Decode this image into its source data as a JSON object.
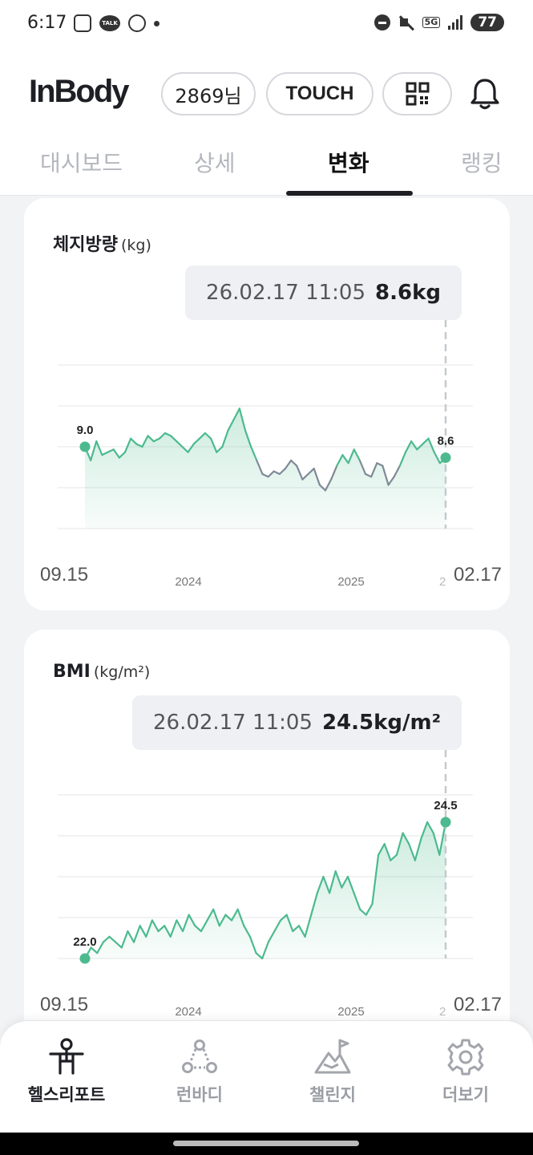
{
  "status_bar": {
    "time": "6:17",
    "talk_label": "TALK",
    "network": "5G",
    "battery": "77"
  },
  "header": {
    "logo": "InBody",
    "user_pill": "2869님",
    "touch_pill": "TOUCH",
    "qr_icon": "qr-code-icon",
    "bell_icon": "bell-icon"
  },
  "tabs": [
    {
      "label": "대시보드",
      "active": false
    },
    {
      "label": "상세",
      "active": false
    },
    {
      "label": "변화",
      "active": true
    },
    {
      "label": "랭킹",
      "active": false
    }
  ],
  "colors": {
    "accent": "#4cba8e",
    "below_line": "#7f8a96",
    "marker": "#c6c9ce"
  },
  "cards": [
    {
      "title": "체지방량",
      "unit": "(kg)",
      "tooltip_time": "26.02.17 11:05",
      "tooltip_value": "8.6kg",
      "start_label": "9.0",
      "end_label": "8.6",
      "x_start": "09.15",
      "x_end": "02.17",
      "year_labels": [
        "2024",
        "2025"
      ],
      "year_cut": "2",
      "chart_data": {
        "type": "line",
        "title": "체지방량",
        "ylabel": "(kg)",
        "x_start": "09.15",
        "x_end": "02.17",
        "ylim": [
          6.0,
          12.0
        ],
        "values": [
          9.0,
          8.5,
          9.2,
          8.7,
          8.8,
          8.9,
          8.6,
          8.8,
          9.3,
          9.1,
          9.0,
          9.4,
          9.2,
          9.3,
          9.5,
          9.4,
          9.2,
          9.0,
          8.8,
          9.1,
          9.3,
          9.5,
          9.3,
          8.8,
          9.0,
          9.6,
          10.0,
          10.4,
          9.6,
          9.0,
          8.5,
          8.0,
          7.9,
          8.1,
          8.0,
          8.2,
          8.5,
          8.3,
          7.8,
          8.0,
          8.2,
          7.6,
          7.4,
          7.8,
          8.3,
          8.7,
          8.4,
          8.9,
          8.5,
          8.0,
          7.9,
          8.4,
          8.3,
          7.6,
          7.9,
          8.3,
          8.8,
          9.2,
          8.9,
          9.1,
          9.3,
          8.8,
          8.4,
          8.6
        ],
        "callout": {
          "time": "26.02.17 11:05",
          "value": 8.6
        }
      }
    },
    {
      "title": "BMI",
      "unit": "(kg/m²)",
      "tooltip_time": "26.02.17 11:05",
      "tooltip_value": "24.5kg/m²",
      "start_label": "22.0",
      "end_label": "24.5",
      "x_start": "09.15",
      "x_end": "02.17",
      "year_labels": [
        "2024",
        "2025"
      ],
      "year_cut": "2",
      "chart_data": {
        "type": "line",
        "title": "BMI",
        "ylabel": "(kg/m²)",
        "x_start": "09.15",
        "x_end": "02.17",
        "ylim": [
          22.0,
          25.0
        ],
        "values": [
          22.0,
          22.2,
          22.1,
          22.3,
          22.4,
          22.3,
          22.2,
          22.5,
          22.3,
          22.6,
          22.4,
          22.7,
          22.5,
          22.6,
          22.4,
          22.7,
          22.5,
          22.8,
          22.6,
          22.5,
          22.7,
          22.9,
          22.6,
          22.8,
          22.7,
          22.9,
          22.6,
          22.4,
          22.1,
          22.0,
          22.3,
          22.5,
          22.7,
          22.8,
          22.5,
          22.6,
          22.4,
          22.8,
          23.2,
          23.5,
          23.2,
          23.6,
          23.3,
          23.5,
          23.2,
          22.9,
          22.8,
          23.0,
          23.9,
          24.1,
          23.8,
          23.9,
          24.3,
          24.1,
          23.8,
          24.2,
          24.5,
          24.3,
          23.9,
          24.5
        ],
        "callout": {
          "time": "26.02.17 11:05",
          "value": 24.5
        }
      }
    }
  ],
  "nav": [
    {
      "label": "헬스리포트",
      "icon": "person-icon",
      "active": true
    },
    {
      "label": "런바디",
      "icon": "run-nodes-icon",
      "active": false
    },
    {
      "label": "챌린지",
      "icon": "mountain-flag-icon",
      "active": false
    },
    {
      "label": "더보기",
      "icon": "gear-icon",
      "active": false
    }
  ]
}
